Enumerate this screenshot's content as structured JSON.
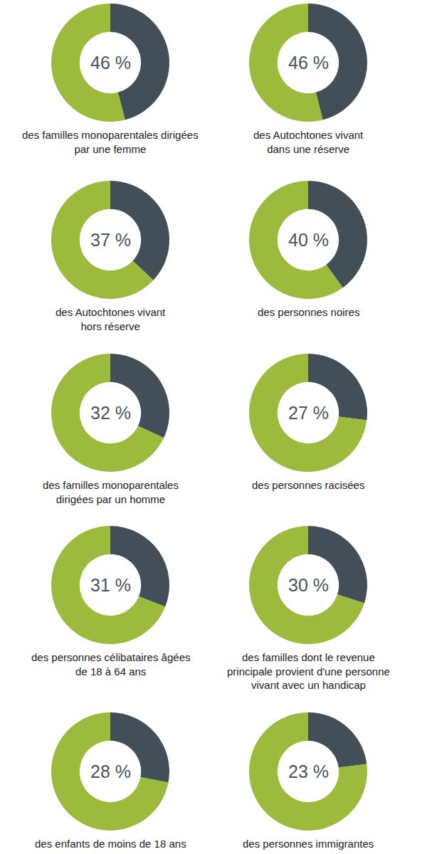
{
  "chart_data": [
    {
      "type": "pie",
      "values": [
        46,
        54
      ],
      "value_labels": [
        "46 %",
        null
      ],
      "colors": [
        "#434f58",
        "#9cba3b"
      ],
      "title": "des familles monoparentales dirigées\npar une femme"
    },
    {
      "type": "pie",
      "values": [
        46,
        54
      ],
      "value_labels": [
        "46 %",
        null
      ],
      "colors": [
        "#434f58",
        "#9cba3b"
      ],
      "title": "des Autochtones vivant\ndans une réserve"
    },
    {
      "type": "pie",
      "values": [
        37,
        63
      ],
      "value_labels": [
        "37 %",
        null
      ],
      "colors": [
        "#434f58",
        "#9cba3b"
      ],
      "title": "des Autochtones vivant\nhors réserve"
    },
    {
      "type": "pie",
      "values": [
        40,
        60
      ],
      "value_labels": [
        "40 %",
        null
      ],
      "colors": [
        "#434f58",
        "#9cba3b"
      ],
      "title": "des personnes noires"
    },
    {
      "type": "pie",
      "values": [
        32,
        68
      ],
      "value_labels": [
        "32 %",
        null
      ],
      "colors": [
        "#434f58",
        "#9cba3b"
      ],
      "title": "des familles monoparentales\ndirigées par un homme"
    },
    {
      "type": "pie",
      "values": [
        27,
        73
      ],
      "value_labels": [
        "27 %",
        null
      ],
      "colors": [
        "#434f58",
        "#9cba3b"
      ],
      "title": "des personnes racisées"
    },
    {
      "type": "pie",
      "values": [
        31,
        69
      ],
      "value_labels": [
        "31 %",
        null
      ],
      "colors": [
        "#434f58",
        "#9cba3b"
      ],
      "title": "des personnes célibataires âgées\nde 18 à 64 ans"
    },
    {
      "type": "pie",
      "values": [
        30,
        70
      ],
      "value_labels": [
        "30 %",
        null
      ],
      "colors": [
        "#434f58",
        "#9cba3b"
      ],
      "title": "des familles dont le revenue\nprincipale provient d'une personne\nvivant avec un handicap"
    },
    {
      "type": "pie",
      "values": [
        28,
        72
      ],
      "value_labels": [
        "28 %",
        null
      ],
      "colors": [
        "#434f58",
        "#9cba3b"
      ],
      "title": "des enfants de moins de 18 ans"
    },
    {
      "type": "pie",
      "values": [
        23,
        77
      ],
      "value_labels": [
        "23 %",
        null
      ],
      "colors": [
        "#434f58",
        "#9cba3b"
      ],
      "title": "des personnes immigrantes"
    }
  ]
}
